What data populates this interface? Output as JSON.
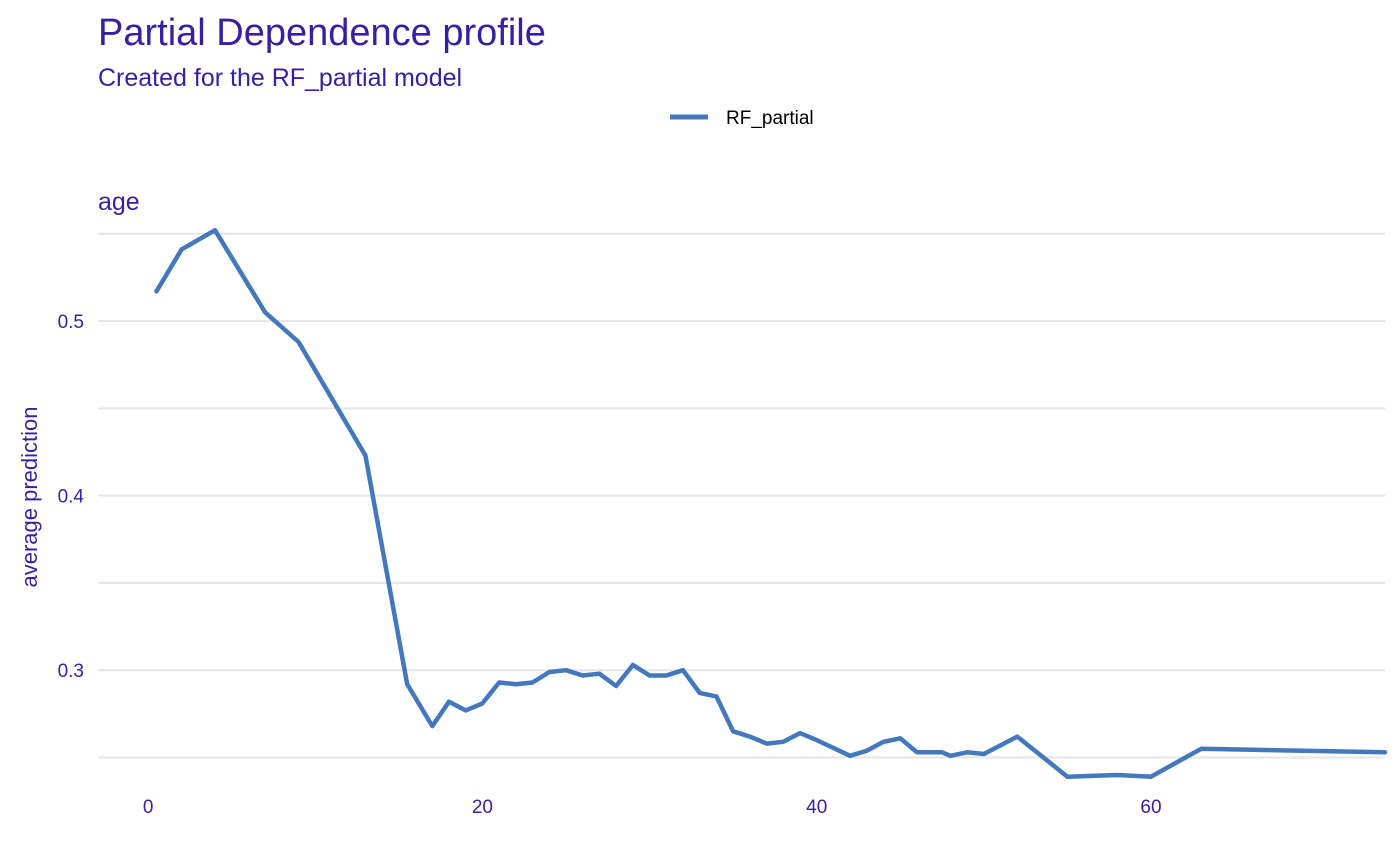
{
  "header": {
    "title": "Partial Dependence profile",
    "subtitle": "Created for the RF_partial model"
  },
  "colors": {
    "text": "#371ea3",
    "series": "#4378bf",
    "grid": "#e6e6e6"
  },
  "chart_data": {
    "type": "line",
    "panel_title": "age",
    "xlabel": "",
    "ylabel": "average prediction",
    "xlim": [
      -3,
      74
    ],
    "ylim": [
      0.24,
      0.555
    ],
    "x_ticks": [
      0,
      20,
      40,
      60
    ],
    "y_ticks": [
      0.3,
      0.4,
      0.5
    ],
    "y_minor_gridlines": [
      0.25,
      0.35,
      0.45,
      0.55
    ],
    "grid": true,
    "legend_position": "top",
    "series": [
      {
        "name": "RF_partial",
        "x": [
          0.5,
          2,
          4,
          7,
          9,
          13,
          15.5,
          17,
          18,
          19,
          20,
          21,
          22,
          23,
          24,
          25,
          26,
          27,
          28,
          29,
          30,
          31,
          32,
          33,
          34,
          35,
          36,
          37,
          38,
          39,
          40,
          42,
          43,
          44,
          45,
          46,
          47.5,
          48,
          49,
          50,
          52,
          55,
          58,
          60,
          63,
          74
        ],
        "values": [
          0.517,
          0.541,
          0.552,
          0.505,
          0.488,
          0.423,
          0.292,
          0.268,
          0.282,
          0.277,
          0.281,
          0.293,
          0.292,
          0.293,
          0.299,
          0.3,
          0.297,
          0.298,
          0.291,
          0.303,
          0.297,
          0.297,
          0.3,
          0.287,
          0.285,
          0.265,
          0.262,
          0.258,
          0.259,
          0.264,
          0.26,
          0.251,
          0.254,
          0.259,
          0.261,
          0.253,
          0.253,
          0.251,
          0.253,
          0.252,
          0.262,
          0.239,
          0.24,
          0.239,
          0.255,
          0.253
        ]
      }
    ]
  }
}
